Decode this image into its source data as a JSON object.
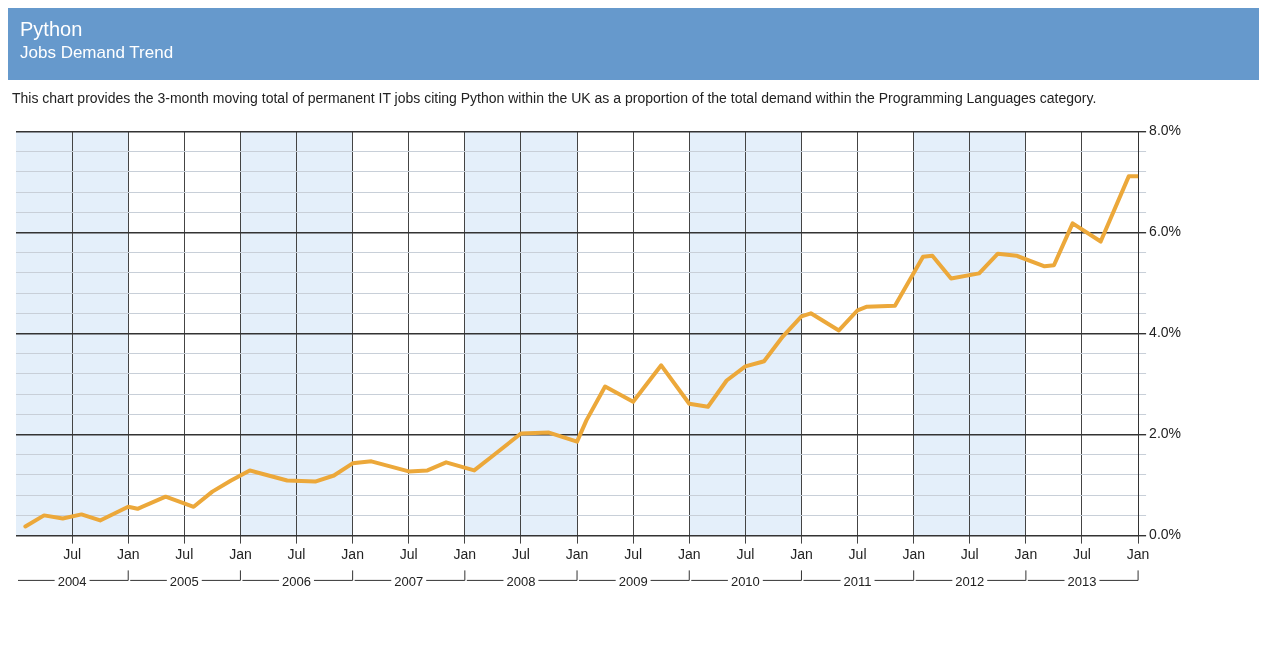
{
  "chart_data": {
    "type": "line",
    "title": "Python",
    "subtitle": "Jobs Demand Trend",
    "annotations": [
      "This chart provides the 3-month moving total of permanent IT jobs citing Python within the UK as a proportion of the total demand within the Programming Languages category."
    ],
    "series": [
      {
        "color": "#eca83a",
        "x": [
          "2004-02",
          "2004-04",
          "2004-06",
          "2004-08",
          "2004-10",
          "2005-01",
          "2005-02",
          "2005-05",
          "2005-08",
          "2005-10",
          "2005-12",
          "2006-02",
          "2006-04",
          "2006-06",
          "2006-09",
          "2006-11",
          "2007-01",
          "2007-03",
          "2007-05",
          "2007-07",
          "2007-09",
          "2007-11",
          "2008-02",
          "2008-04",
          "2008-07",
          "2008-10",
          "2009-01",
          "2009-02",
          "2009-04",
          "2009-07",
          "2009-10",
          "2010-01",
          "2010-03",
          "2010-05",
          "2010-07",
          "2010-09",
          "2010-11",
          "2011-01",
          "2011-02",
          "2011-05",
          "2011-07",
          "2011-08",
          "2011-11",
          "2012-02",
          "2012-03",
          "2012-05",
          "2012-08",
          "2012-10",
          "2012-12",
          "2013-03",
          "2013-04",
          "2013-06",
          "2013-09",
          "2013-12",
          "2014-01"
        ],
        "values": [
          0.18,
          0.4,
          0.34,
          0.42,
          0.3,
          0.57,
          0.53,
          0.77,
          0.57,
          0.87,
          1.09,
          1.29,
          1.19,
          1.09,
          1.07,
          1.19,
          1.43,
          1.47,
          1.37,
          1.27,
          1.29,
          1.45,
          1.29,
          1.58,
          2.02,
          2.04,
          1.86,
          2.28,
          2.95,
          2.65,
          3.37,
          2.61,
          2.55,
          3.07,
          3.35,
          3.45,
          3.94,
          4.34,
          4.4,
          4.06,
          4.46,
          4.53,
          4.55,
          5.52,
          5.54,
          5.09,
          5.19,
          5.58,
          5.54,
          5.33,
          5.35,
          6.18,
          5.82,
          7.11,
          7.11
        ]
      }
    ],
    "xlim": [
      "2004-01",
      "2014-01"
    ],
    "xticks": [
      {
        "value": "2004-07",
        "label": "Jul"
      },
      {
        "value": "2005-01",
        "label": "Jan"
      },
      {
        "value": "2005-07",
        "label": "Jul"
      },
      {
        "value": "2006-01",
        "label": "Jan"
      },
      {
        "value": "2006-07",
        "label": "Jul"
      },
      {
        "value": "2007-01",
        "label": "Jan"
      },
      {
        "value": "2007-07",
        "label": "Jul"
      },
      {
        "value": "2008-01",
        "label": "Jan"
      },
      {
        "value": "2008-07",
        "label": "Jul"
      },
      {
        "value": "2009-01",
        "label": "Jan"
      },
      {
        "value": "2009-07",
        "label": "Jul"
      },
      {
        "value": "2010-01",
        "label": "Jan"
      },
      {
        "value": "2010-07",
        "label": "Jul"
      },
      {
        "value": "2011-01",
        "label": "Jan"
      },
      {
        "value": "2011-07",
        "label": "Jul"
      },
      {
        "value": "2012-01",
        "label": "Jan"
      },
      {
        "value": "2012-07",
        "label": "Jul"
      },
      {
        "value": "2013-01",
        "label": "Jan"
      },
      {
        "value": "2013-07",
        "label": "Jul"
      },
      {
        "value": "2014-01",
        "label": "Jan"
      }
    ],
    "x2lim": [
      "2004-01",
      "2014-01"
    ],
    "x2ticks": [
      {
        "value": "2004-07",
        "label": "2004"
      },
      {
        "value": "2005-07",
        "label": "2005"
      },
      {
        "value": "2006-07",
        "label": "2006"
      },
      {
        "value": "2007-07",
        "label": "2007"
      },
      {
        "value": "2008-07",
        "label": "2008"
      },
      {
        "value": "2009-07",
        "label": "2009"
      },
      {
        "value": "2010-07",
        "label": "2010"
      },
      {
        "value": "2011-07",
        "label": "2011"
      },
      {
        "value": "2012-07",
        "label": "2012"
      },
      {
        "value": "2013-07",
        "label": "2013"
      }
    ],
    "ylim": [
      0,
      8
    ],
    "yticks": [
      {
        "value": 0,
        "label": "0.0%"
      },
      {
        "value": 0.4,
        "label": null
      },
      {
        "value": 0.8,
        "label": null
      },
      {
        "value": 1.2,
        "label": null
      },
      {
        "value": 1.6,
        "label": null
      },
      {
        "value": 2,
        "label": "2.0%"
      },
      {
        "value": 2.4,
        "label": null
      },
      {
        "value": 2.8,
        "label": null
      },
      {
        "value": 3.2,
        "label": null
      },
      {
        "value": 3.6,
        "label": null
      },
      {
        "value": 4,
        "label": "4.0%"
      },
      {
        "value": 4.4,
        "label": null
      },
      {
        "value": 4.8,
        "label": null
      },
      {
        "value": 5.2,
        "label": null
      },
      {
        "value": 5.6,
        "label": null
      },
      {
        "value": 6,
        "label": "6.0%"
      },
      {
        "value": 6.4,
        "label": null
      },
      {
        "value": 6.8,
        "label": null
      },
      {
        "value": 7.2,
        "label": null
      },
      {
        "value": 7.6,
        "label": null
      },
      {
        "value": 8,
        "label": "8.0%"
      }
    ],
    "bands": [
      {
        "axis": "x",
        "from": "2004-01",
        "to": "2005-01",
        "color": "#e4effa"
      },
      {
        "axis": "x",
        "from": "2006-01",
        "to": "2007-01",
        "color": "#e4effa"
      },
      {
        "axis": "x",
        "from": "2008-01",
        "to": "2009-01",
        "color": "#e4effa"
      },
      {
        "axis": "x",
        "from": "2010-01",
        "to": "2011-01",
        "color": "#e4effa"
      },
      {
        "axis": "x",
        "from": "2012-01",
        "to": "2013-01",
        "color": "#e4effa"
      }
    ],
    "grid": true,
    "legend": false,
    "marker": "none",
    "line_style": "solid"
  }
}
